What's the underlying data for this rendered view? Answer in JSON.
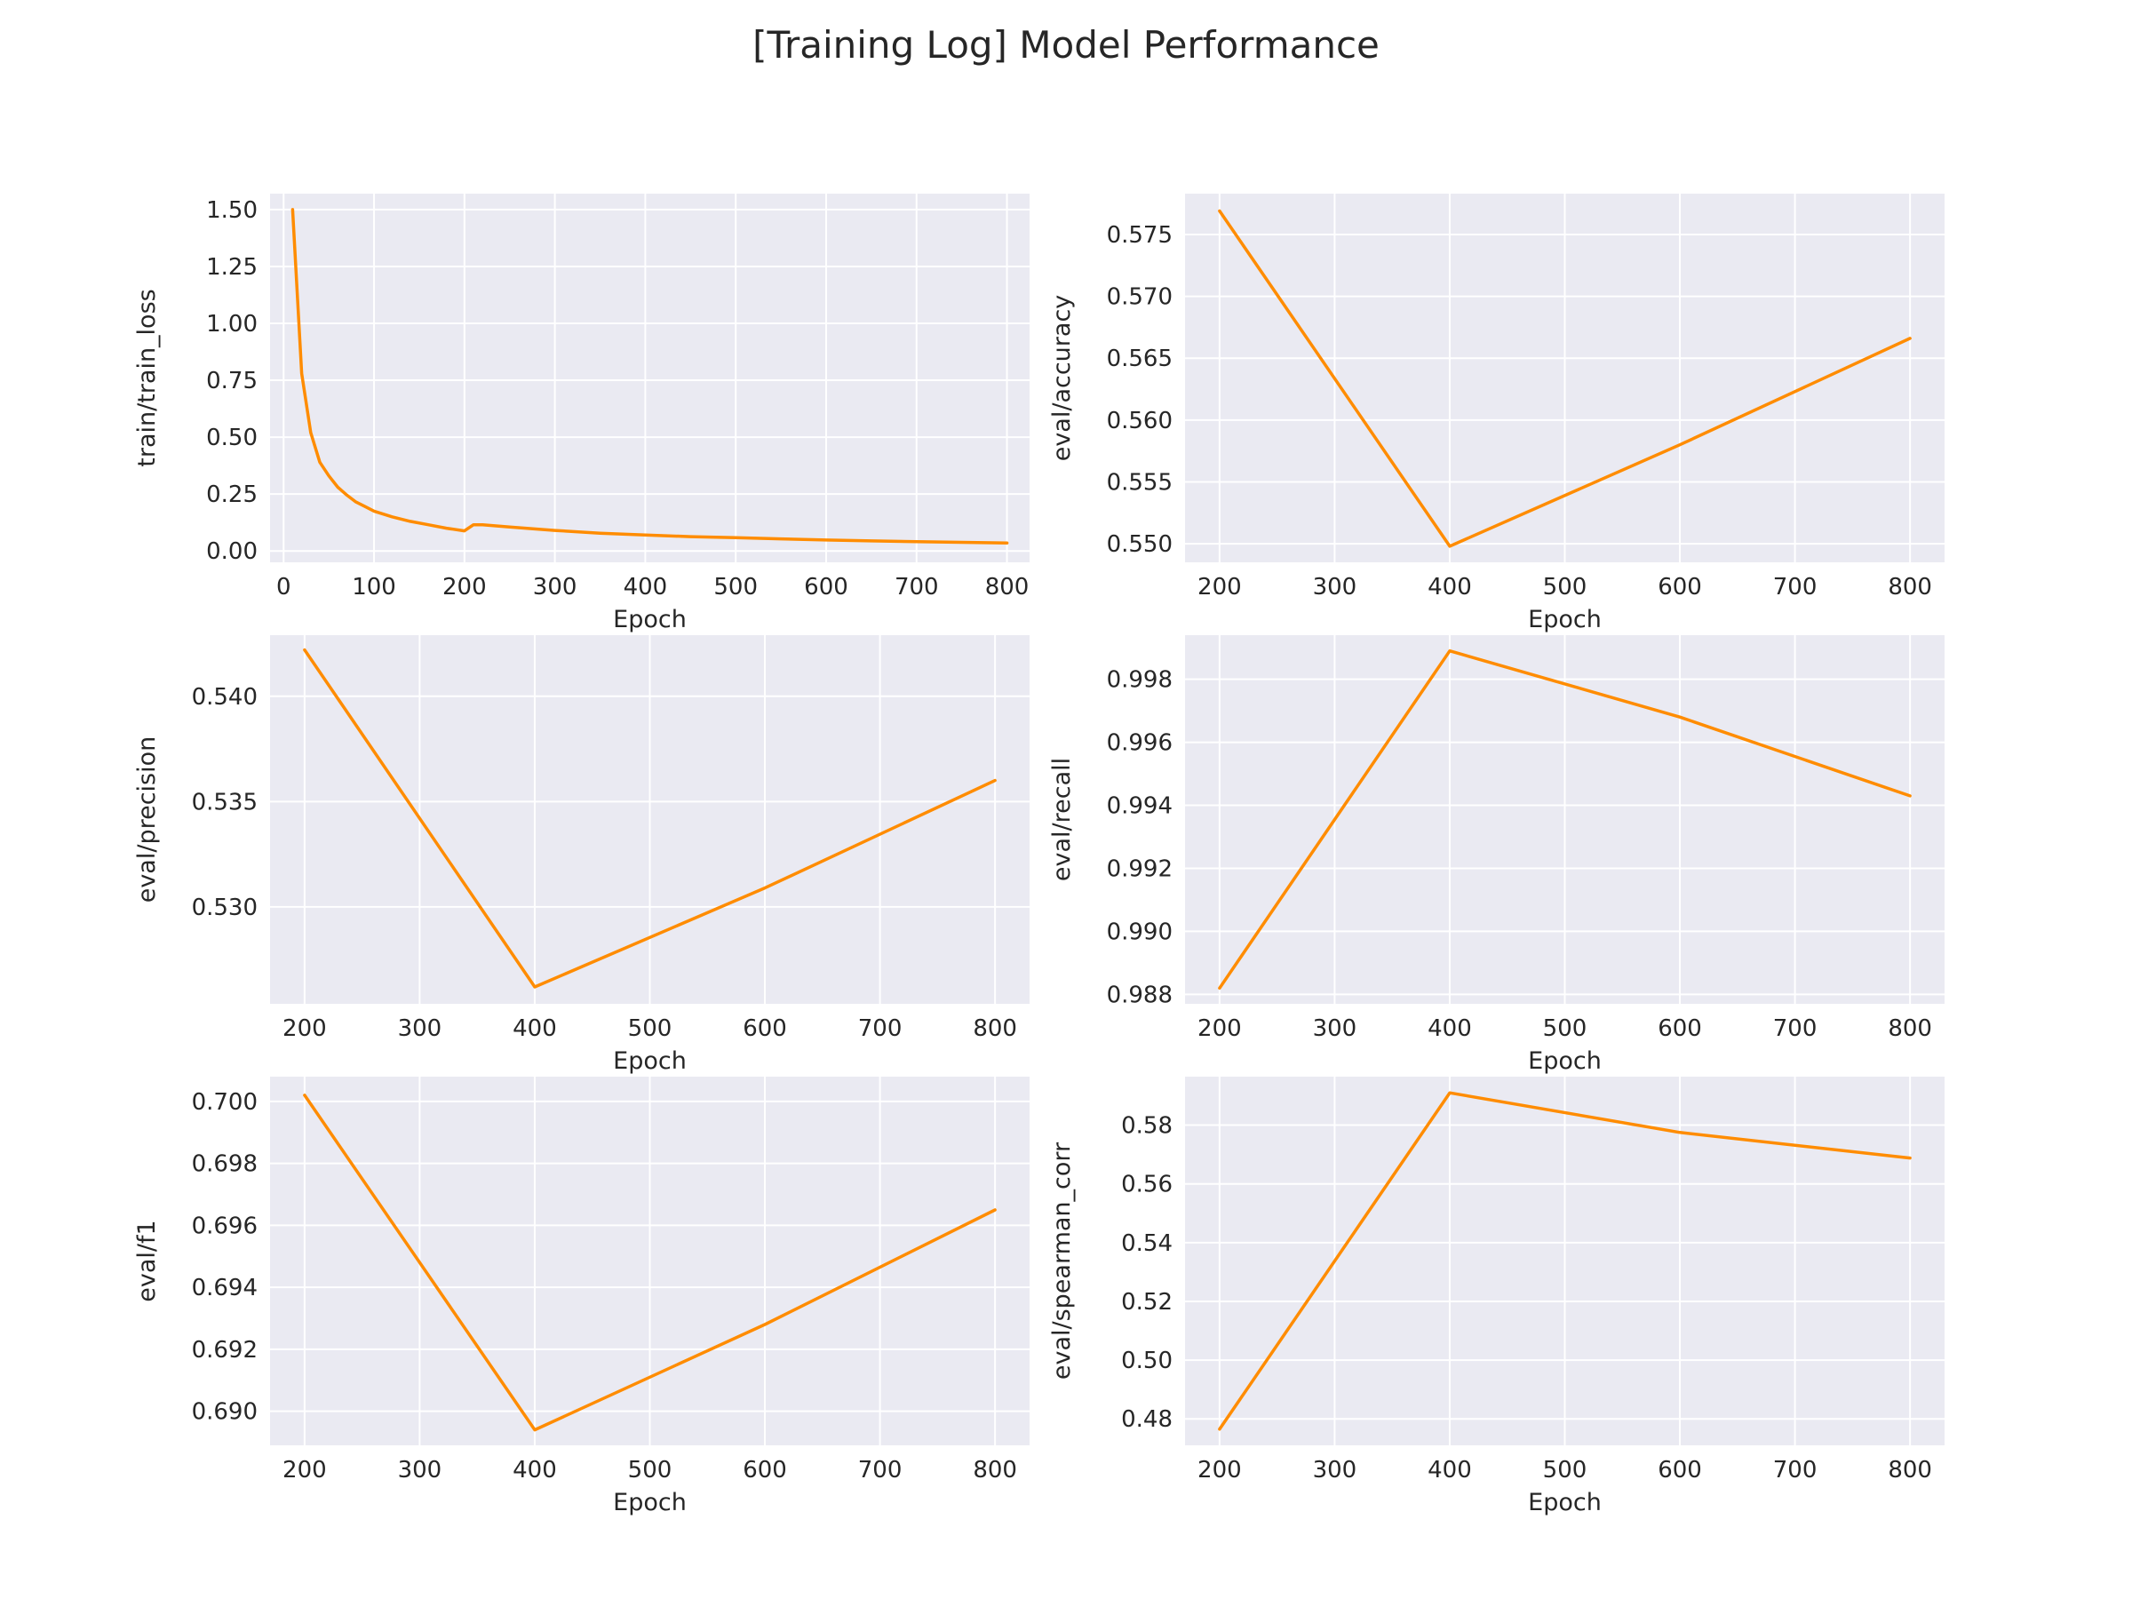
{
  "figure": {
    "title": "[Training Log] Model Performance",
    "background": "#ffffff",
    "panel_background": "#eaeaf2",
    "grid_color": "#ffffff",
    "line_color": "#ff8c00"
  },
  "chart_data": [
    {
      "type": "line",
      "xlabel": "Epoch",
      "ylabel": "train/train_loss",
      "grid": true,
      "xlim": [
        -15,
        825
      ],
      "ylim": [
        -0.05,
        1.57
      ],
      "xticks": [
        0,
        100,
        200,
        300,
        400,
        500,
        600,
        700,
        800
      ],
      "xtick_labels": [
        "0",
        "100",
        "200",
        "300",
        "400",
        "500",
        "600",
        "700",
        "800"
      ],
      "yticks": [
        0.0,
        0.25,
        0.5,
        0.75,
        1.0,
        1.25,
        1.5
      ],
      "ytick_labels": [
        "0.00",
        "0.25",
        "0.50",
        "0.75",
        "1.00",
        "1.25",
        "1.50"
      ],
      "x": [
        10,
        20,
        30,
        40,
        50,
        60,
        70,
        80,
        90,
        100,
        120,
        140,
        160,
        180,
        200,
        210,
        220,
        250,
        300,
        350,
        400,
        450,
        500,
        550,
        600,
        650,
        700,
        750,
        800
      ],
      "y": [
        1.5,
        0.78,
        0.52,
        0.39,
        0.33,
        0.28,
        0.245,
        0.215,
        0.195,
        0.175,
        0.15,
        0.13,
        0.115,
        0.1,
        0.088,
        0.115,
        0.115,
        0.105,
        0.09,
        0.078,
        0.07,
        0.063,
        0.058,
        0.053,
        0.048,
        0.044,
        0.041,
        0.038,
        0.035
      ]
    },
    {
      "type": "line",
      "xlabel": "Epoch",
      "ylabel": "eval/accuracy",
      "grid": true,
      "xlim": [
        170,
        830
      ],
      "ylim": [
        0.5485,
        0.5783
      ],
      "xticks": [
        200,
        300,
        400,
        500,
        600,
        700,
        800
      ],
      "xtick_labels": [
        "200",
        "300",
        "400",
        "500",
        "600",
        "700",
        "800"
      ],
      "yticks": [
        0.55,
        0.555,
        0.56,
        0.565,
        0.57,
        0.575
      ],
      "ytick_labels": [
        "0.550",
        "0.555",
        "0.560",
        "0.565",
        "0.570",
        "0.575"
      ],
      "x": [
        200,
        400,
        600,
        800
      ],
      "y": [
        0.5769,
        0.5498,
        0.558,
        0.5666
      ]
    },
    {
      "type": "line",
      "xlabel": "Epoch",
      "ylabel": "eval/precision",
      "grid": true,
      "xlim": [
        170,
        830
      ],
      "ylim": [
        0.5254,
        0.5429
      ],
      "xticks": [
        200,
        300,
        400,
        500,
        600,
        700,
        800
      ],
      "xtick_labels": [
        "200",
        "300",
        "400",
        "500",
        "600",
        "700",
        "800"
      ],
      "yticks": [
        0.53,
        0.535,
        0.54
      ],
      "ytick_labels": [
        "0.530",
        "0.535",
        "0.540"
      ],
      "x": [
        200,
        400,
        600,
        800
      ],
      "y": [
        0.5422,
        0.5262,
        0.5309,
        0.536
      ]
    },
    {
      "type": "line",
      "xlabel": "Epoch",
      "ylabel": "eval/recall",
      "grid": true,
      "xlim": [
        170,
        830
      ],
      "ylim": [
        0.9877,
        0.9994
      ],
      "xticks": [
        200,
        300,
        400,
        500,
        600,
        700,
        800
      ],
      "xtick_labels": [
        "200",
        "300",
        "400",
        "500",
        "600",
        "700",
        "800"
      ],
      "yticks": [
        0.988,
        0.99,
        0.992,
        0.994,
        0.996,
        0.998
      ],
      "ytick_labels": [
        "0.988",
        "0.990",
        "0.992",
        "0.994",
        "0.996",
        "0.998"
      ],
      "x": [
        200,
        400,
        600,
        800
      ],
      "y": [
        0.9882,
        0.9989,
        0.9968,
        0.9943
      ]
    },
    {
      "type": "line",
      "xlabel": "Epoch",
      "ylabel": "eval/f1",
      "grid": true,
      "xlim": [
        170,
        830
      ],
      "ylim": [
        0.6889,
        0.7008
      ],
      "xticks": [
        200,
        300,
        400,
        500,
        600,
        700,
        800
      ],
      "xtick_labels": [
        "200",
        "300",
        "400",
        "500",
        "600",
        "700",
        "800"
      ],
      "yticks": [
        0.69,
        0.692,
        0.694,
        0.696,
        0.698,
        0.7
      ],
      "ytick_labels": [
        "0.690",
        "0.692",
        "0.694",
        "0.696",
        "0.698",
        "0.700"
      ],
      "x": [
        200,
        400,
        600,
        800
      ],
      "y": [
        0.7002,
        0.6894,
        0.6928,
        0.6965
      ]
    },
    {
      "type": "line",
      "xlabel": "Epoch",
      "ylabel": "eval/spearman_corr",
      "grid": true,
      "xlim": [
        170,
        830
      ],
      "ylim": [
        0.471,
        0.5965
      ],
      "xticks": [
        200,
        300,
        400,
        500,
        600,
        700,
        800
      ],
      "xtick_labels": [
        "200",
        "300",
        "400",
        "500",
        "600",
        "700",
        "800"
      ],
      "yticks": [
        0.48,
        0.5,
        0.52,
        0.54,
        0.56,
        0.58
      ],
      "ytick_labels": [
        "0.48",
        "0.50",
        "0.52",
        "0.54",
        "0.56",
        "0.58"
      ],
      "x": [
        200,
        400,
        600,
        800
      ],
      "y": [
        0.4765,
        0.591,
        0.5775,
        0.5688
      ]
    }
  ]
}
